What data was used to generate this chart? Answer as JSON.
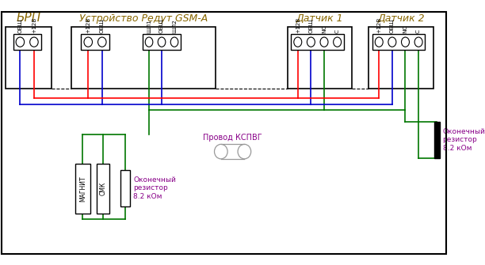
{
  "bg": "#ffffff",
  "title_brp": "БРП",
  "title_redut": "Устройство Редут GSM-A",
  "title_s1": "Датчик 1",
  "title_s2": "Датчик 2",
  "pin_brp": [
    "ОБЩ",
    "+12В"
  ],
  "pin_rl": [
    "+12В",
    "ОБЩ"
  ],
  "pin_rr": [
    "ШЛ1",
    "ОБЩ",
    "ШЛ2"
  ],
  "pin_s1": [
    "+12В",
    "ОБЩ",
    "NС",
    "С"
  ],
  "pin_s2": [
    "+12В",
    "ОБЩ",
    "NС",
    "С"
  ],
  "label_magnet": "МАГНИТ",
  "label_smk": "СМК",
  "label_res1": "Оконечный\nрезистор\n8.2 кОм",
  "label_res2": "Оконечный\nрезистор\n8.2 кОм",
  "label_kspvg": "Провод КСПВГ",
  "red": "#ff0000",
  "blue": "#0000cc",
  "green": "#007700",
  "gray": "#999999",
  "purple": "#880088",
  "black": "#000000",
  "white": "#ffffff",
  "title_color": "#886600"
}
